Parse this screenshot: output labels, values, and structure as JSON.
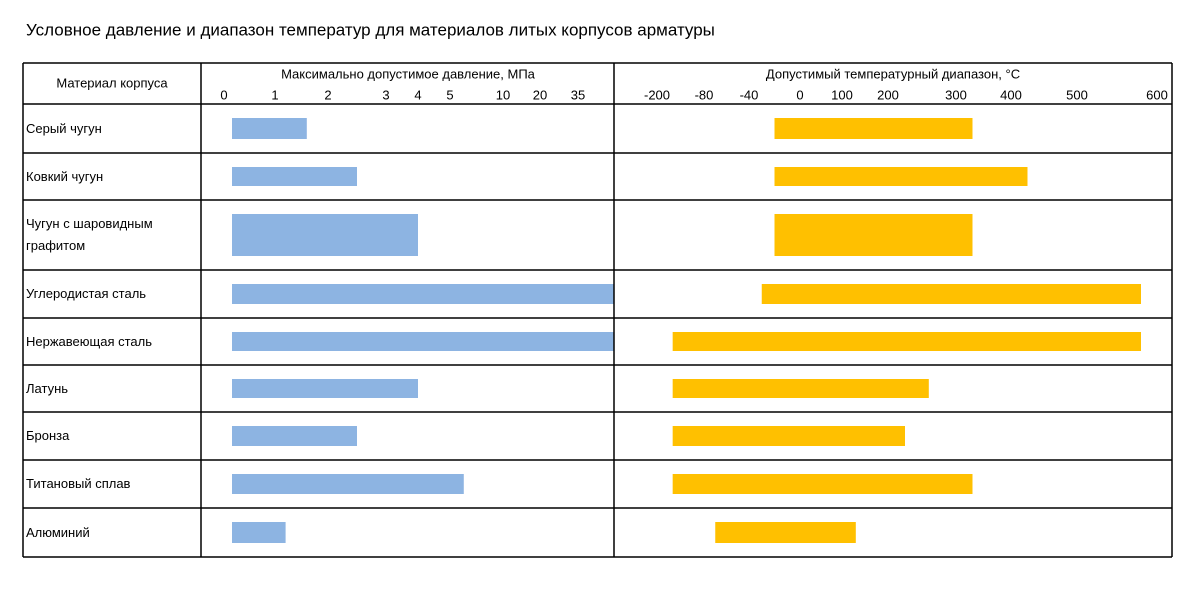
{
  "title": "Условное давление и диапазон температур для материалов литых корпусов арматуры",
  "row_header": "Материал корпуса",
  "chart_data": [
    {
      "type": "bar",
      "title": "Максимально допустимое давление, МПа",
      "categories": [
        "Серый чугун",
        "Ковкий чугун",
        "Чугун с шаровидным графитом",
        "Углеродистая сталь",
        "Нержавеющая сталь",
        "Латунь",
        "Бронза",
        "Титановый сплав",
        "Алюминий"
      ],
      "values": [
        1.6,
        2.5,
        4,
        40,
        40,
        4,
        2.5,
        6.3,
        1.2
      ],
      "color": "#8db4e2",
      "xlim": [
        0,
        40
      ],
      "xticks": [
        0,
        1,
        2,
        3,
        4,
        5,
        10,
        20,
        35
      ]
    },
    {
      "type": "range-bar",
      "title": "Допустимый температурный диапазон, °C",
      "low": [
        -20,
        -20,
        -20,
        -30,
        -160,
        -160,
        -160,
        -160,
        -70
      ],
      "high": [
        330,
        425,
        330,
        580,
        580,
        260,
        225,
        330,
        130
      ],
      "color": "#ffc000",
      "xlim": [
        -200,
        600
      ],
      "xticks": [
        -200,
        -80,
        -40,
        0,
        100,
        200,
        300,
        400,
        500,
        600
      ]
    }
  ]
}
